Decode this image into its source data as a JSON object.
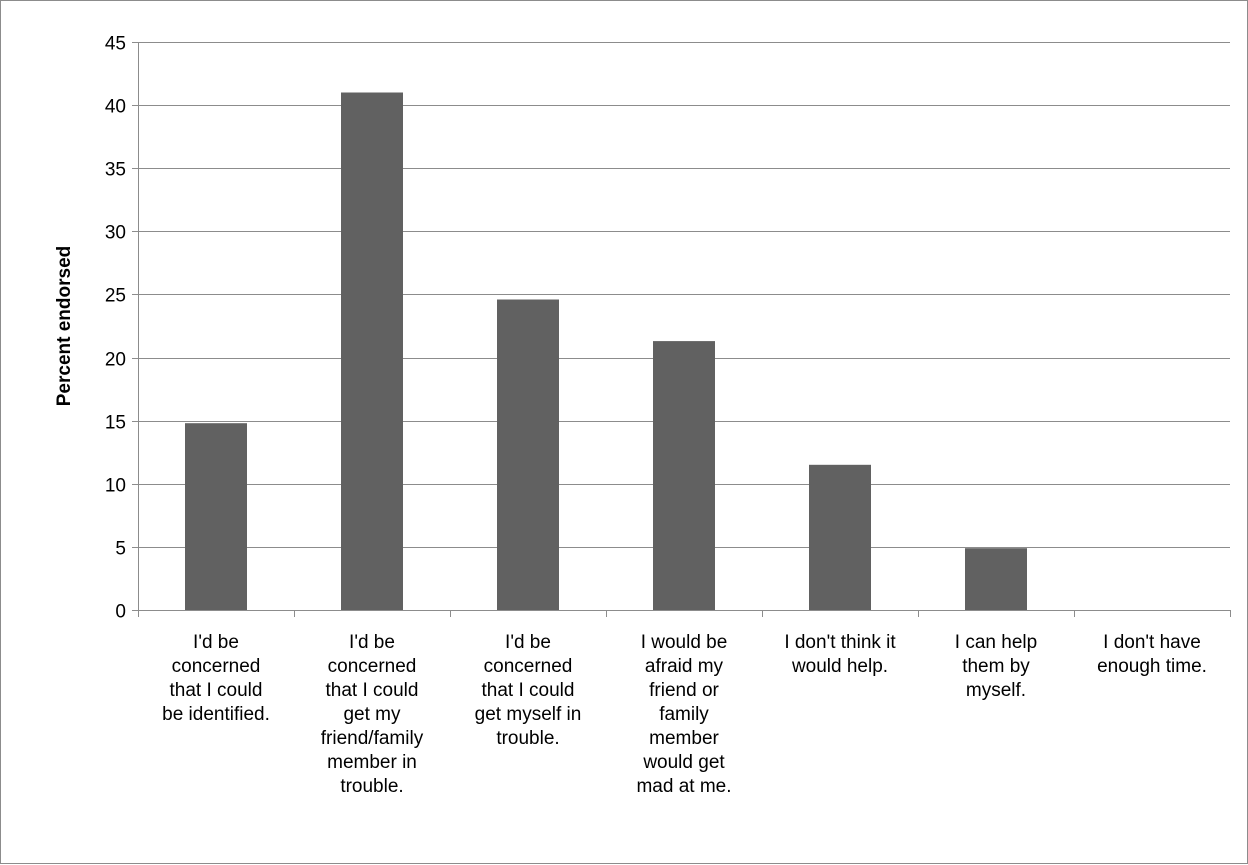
{
  "chart_data": {
    "type": "bar",
    "title": "",
    "xlabel": "",
    "ylabel": "Percent endorsed",
    "ylim": [
      0,
      45
    ],
    "yticks": [
      0,
      5,
      10,
      15,
      20,
      25,
      30,
      35,
      40,
      45
    ],
    "grid": true,
    "legend": "none",
    "bar_color": "#616161",
    "grid_color": "#8c8c8c",
    "categories": [
      [
        "I'd be",
        "concerned",
        "that I could",
        "be identified."
      ],
      [
        "I'd be",
        "concerned",
        "that I could",
        "get my",
        "friend/family",
        "member in",
        "trouble."
      ],
      [
        "I'd be",
        "concerned",
        "that I could",
        "get myself in",
        "trouble."
      ],
      [
        "I would be",
        "afraid my",
        "friend or",
        "family",
        "member",
        "would get",
        "mad at me."
      ],
      [
        "I don't think it",
        "would help."
      ],
      [
        "I can help",
        "them by",
        "myself."
      ],
      [
        "I don't have",
        "enough time."
      ]
    ],
    "values": [
      14.8,
      41.0,
      24.6,
      21.3,
      11.5,
      4.9,
      0
    ]
  }
}
